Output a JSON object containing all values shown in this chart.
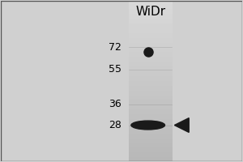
{
  "title": "WiDr",
  "mw_markers": [
    72,
    55,
    36,
    28
  ],
  "band1_mw": 68,
  "band2_mw": 28,
  "bg_color": "#d8d8d8",
  "band_color": "#1a1a1a",
  "arrow_color": "#1a1a1a",
  "marker_line_color": "#888888",
  "title_fontsize": 11,
  "marker_fontsize": 9,
  "fig_bg": "#d0d0d0"
}
